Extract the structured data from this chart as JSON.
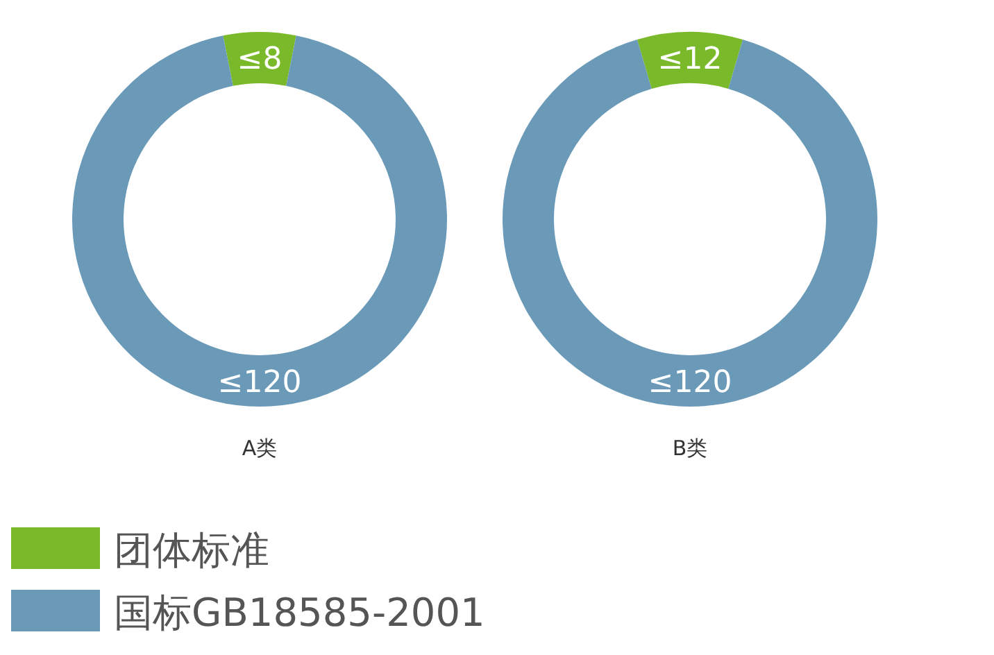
{
  "chart_data": [
    {
      "type": "donut",
      "title": "A类",
      "categories": [
        "团体标准",
        "国标GB18585-2001"
      ],
      "values": [
        8,
        120
      ],
      "value_labels": [
        "≤8",
        "≤120"
      ],
      "colors": [
        "#7ab929",
        "#6a9ab8"
      ],
      "legend": "bottom"
    },
    {
      "type": "donut",
      "title": "B类",
      "categories": [
        null,
        null
      ],
      "values": [
        12,
        120
      ],
      "value_labels": [
        "≤12",
        "≤120"
      ],
      "colors": [
        "#7ab929",
        "#6a9ab8"
      ]
    }
  ]
}
